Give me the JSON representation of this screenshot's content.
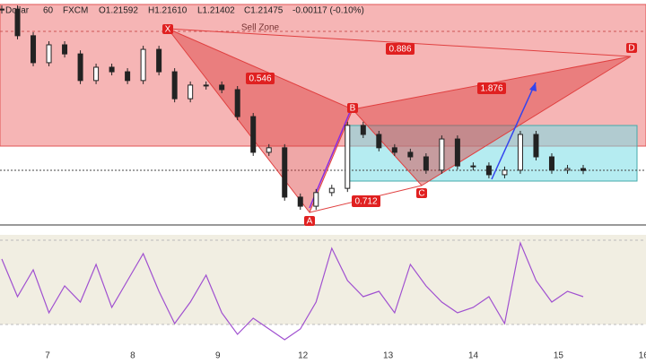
{
  "header": {
    "symbol": "Dollar",
    "interval": "60",
    "source": "FXCM",
    "open": "O1.21592",
    "high": "H1.21610",
    "low": "L1.21402",
    "close": "C1.21475",
    "change": "-0.00117 (-0.10%)"
  },
  "zone_label": "Sell Zone",
  "pattern": {
    "points": [
      "X",
      "A",
      "B",
      "C",
      "D"
    ],
    "ratios": {
      "xb": "0.546",
      "ac": "0.712",
      "bd": "1.876",
      "xd": "0.886"
    }
  },
  "x_labels": [
    "7",
    "8",
    "9",
    "12",
    "13",
    "14",
    "15",
    "16"
  ],
  "chart_data": {
    "type": "price-line",
    "values": [
      1.21972,
      1.2189,
      1.21807,
      1.21862,
      1.21834,
      1.21752,
      1.21793,
      1.21779,
      1.21752,
      1.21848,
      1.21779,
      1.21696,
      1.21738,
      1.21738,
      1.21724,
      1.21641,
      1.21531,
      1.21545,
      1.21393,
      1.21365,
      1.21407,
      1.2142,
      1.21614,
      1.21586,
      1.21545,
      1.21531,
      1.21517,
      1.21476,
      1.21572,
      1.21489,
      1.21489,
      1.21462,
      1.21476,
      1.21586,
      1.21517,
      1.21476,
      1.21481,
      1.21475
    ],
    "ylim": [
      1.2131,
      1.22
    ],
    "oscillator": [
      80,
      45,
      70,
      30,
      55,
      40,
      75,
      35,
      60,
      85,
      50,
      20,
      40,
      65,
      30,
      10,
      25,
      15,
      5,
      15,
      40,
      90,
      60,
      45,
      50,
      30,
      75,
      55,
      40,
      30,
      35,
      45,
      20,
      95,
      60,
      40,
      50,
      45
    ],
    "oscillator_ylim": [
      0,
      100
    ]
  }
}
